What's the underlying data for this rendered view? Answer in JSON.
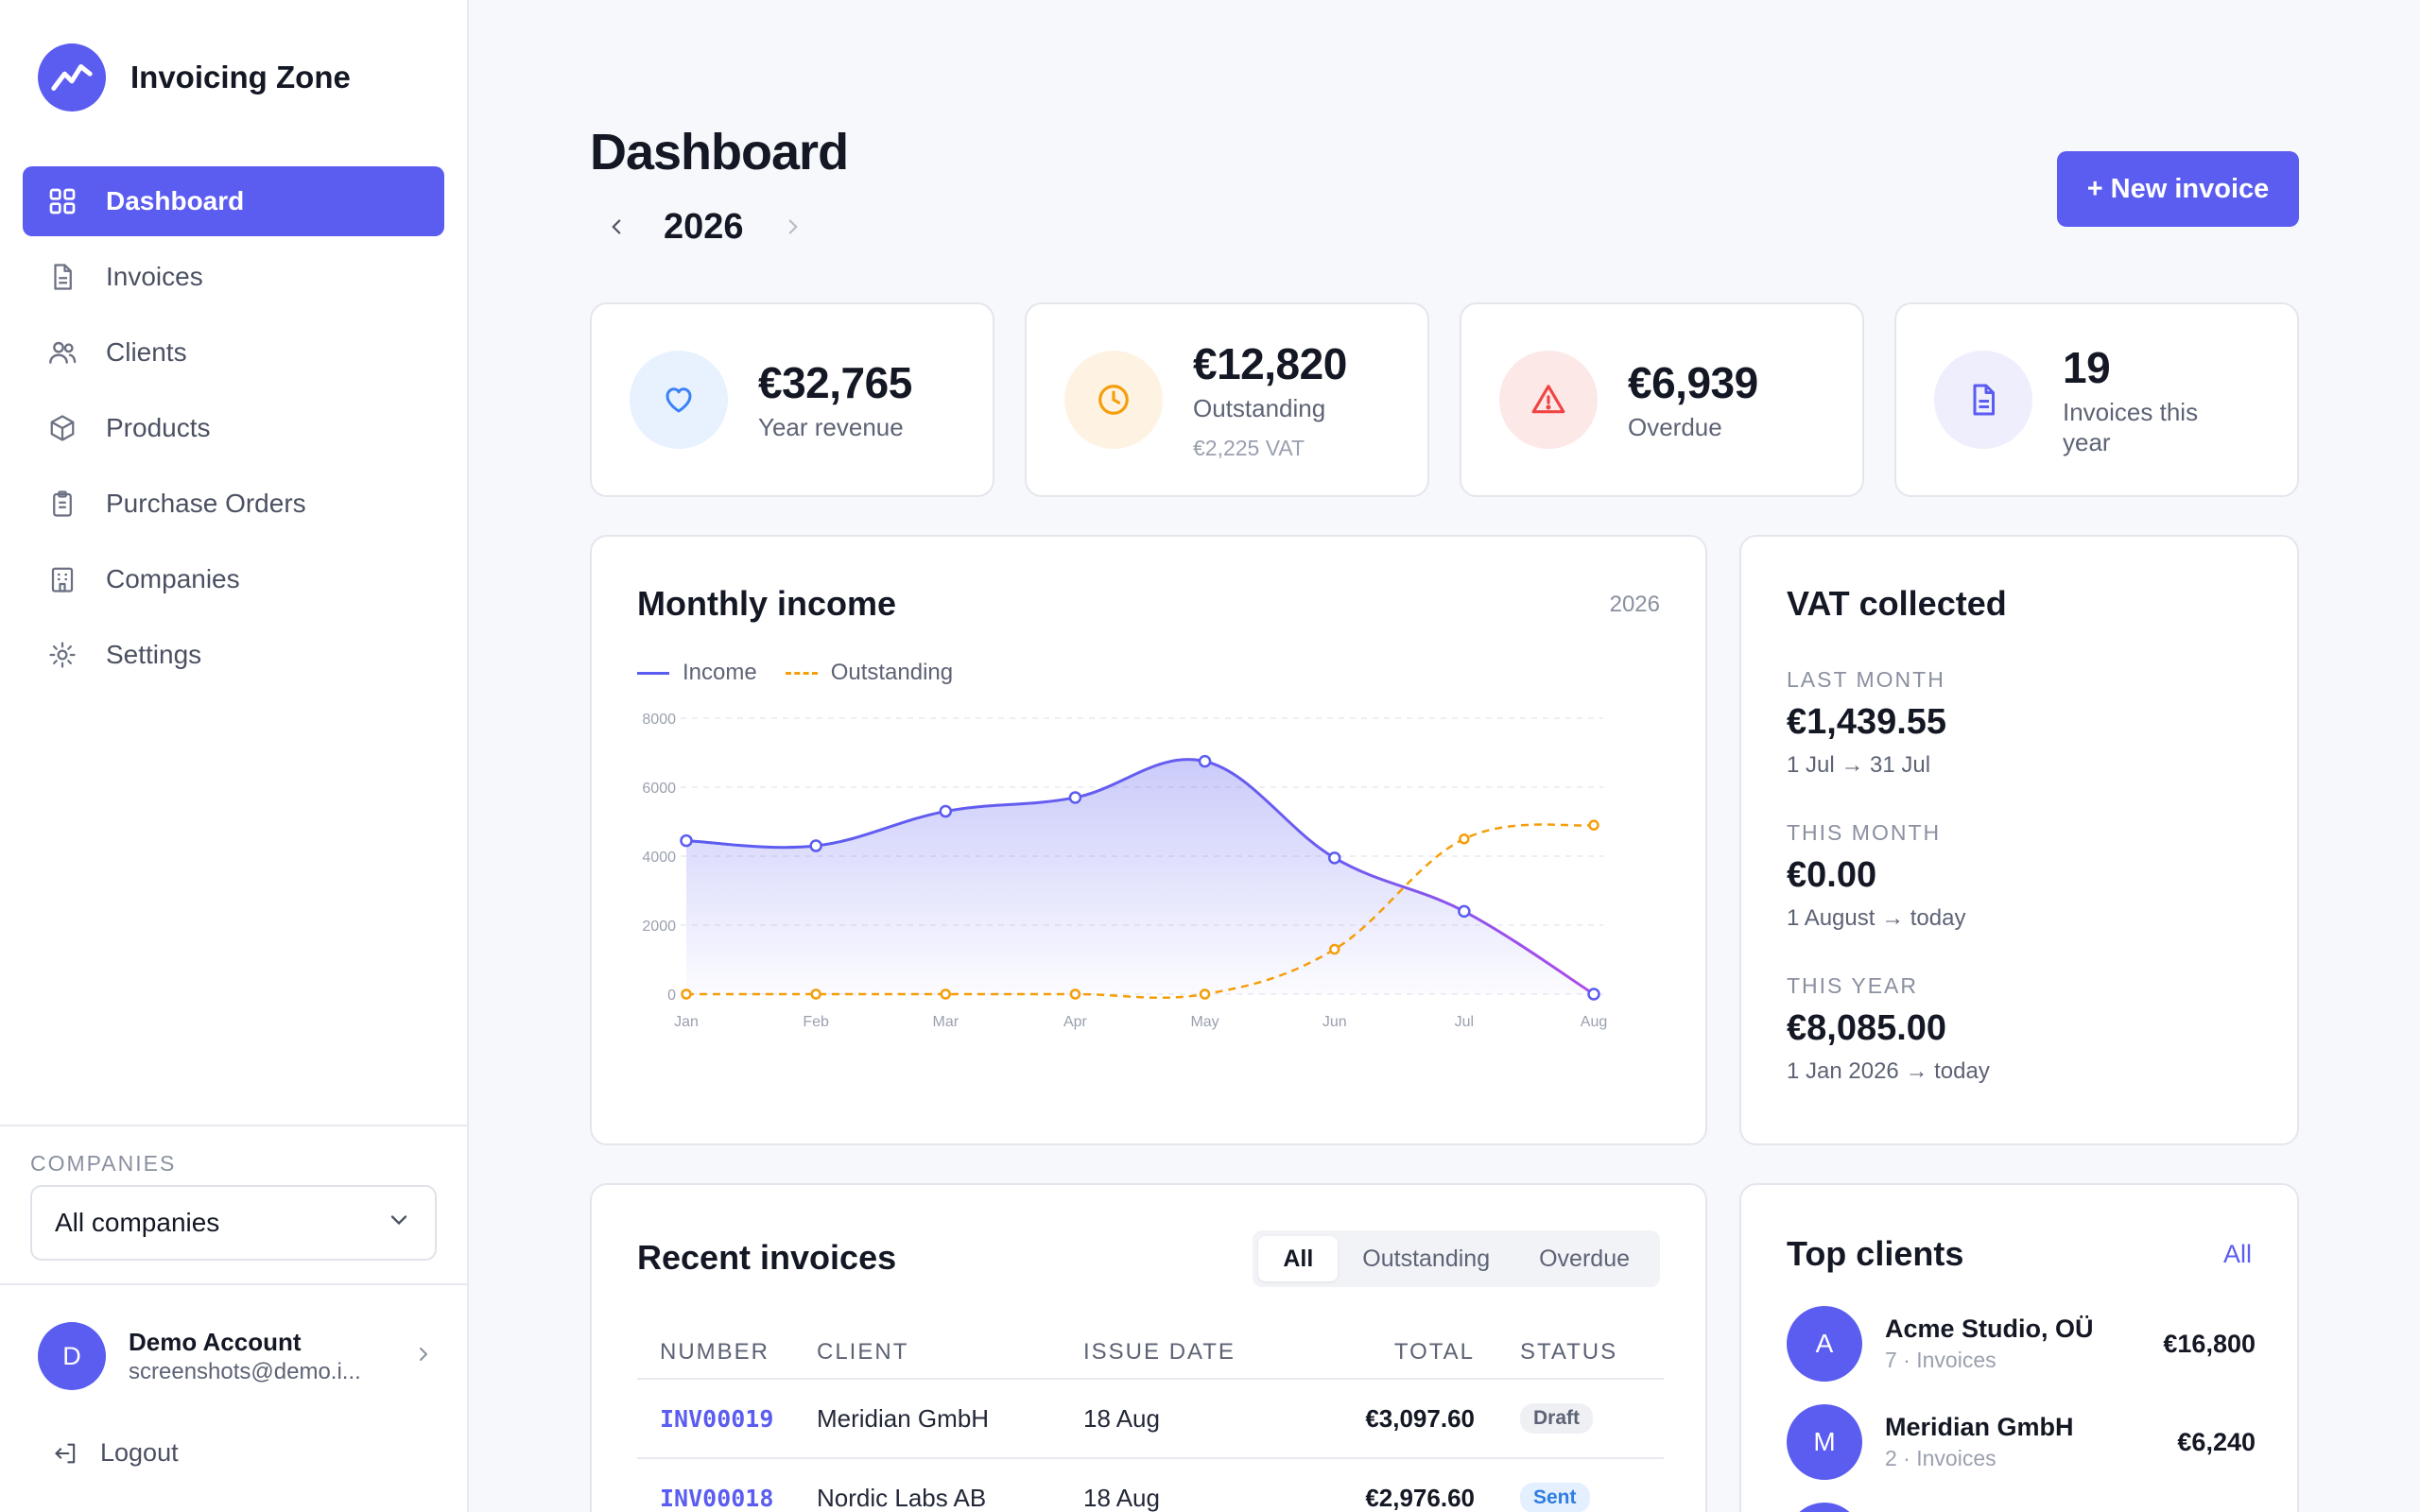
{
  "brand": {
    "name": "Invoicing Zone"
  },
  "nav": [
    {
      "label": "Dashboard",
      "icon": "grid-icon",
      "active": true
    },
    {
      "label": "Invoices",
      "icon": "document-icon"
    },
    {
      "label": "Clients",
      "icon": "users-icon"
    },
    {
      "label": "Products",
      "icon": "box-icon"
    },
    {
      "label": "Purchase Orders",
      "icon": "clipboard-icon"
    },
    {
      "label": "Companies",
      "icon": "building-icon"
    },
    {
      "label": "Settings",
      "icon": "gear-icon"
    }
  ],
  "companies": {
    "label": "COMPANIES",
    "selected": "All companies"
  },
  "account": {
    "initial": "D",
    "name": "Demo Account",
    "email": "screenshots@demo.i..."
  },
  "logout_label": "Logout",
  "header": {
    "title": "Dashboard",
    "year": "2026",
    "new_invoice_label": "+ New invoice"
  },
  "stats": [
    {
      "value": "€32,765",
      "label": "Year revenue",
      "icon": "heart-icon",
      "color": "#3b82f6",
      "bg": "#e8f1fe"
    },
    {
      "value": "€12,820",
      "label": "Outstanding",
      "sub": "€2,225 VAT",
      "icon": "clock-icon",
      "color": "#f59e0b",
      "bg": "#fef3e2"
    },
    {
      "value": "€6,939",
      "label": "Overdue",
      "icon": "warning-icon",
      "color": "#ef4444",
      "bg": "#fde8e8"
    },
    {
      "value": "19",
      "label": "Invoices this year",
      "icon": "document-icon",
      "color": "#5b5cf0",
      "bg": "#eeeefd"
    }
  ],
  "monthly_income": {
    "title": "Monthly income",
    "year": "2026",
    "legend": {
      "income": "Income",
      "outstanding": "Outstanding"
    }
  },
  "chart_data": {
    "type": "line",
    "categories": [
      "Jan",
      "Feb",
      "Mar",
      "Apr",
      "May",
      "Jun",
      "Jul",
      "Aug"
    ],
    "series": [
      {
        "name": "Income",
        "values": [
          4450,
          4300,
          5300,
          5700,
          6750,
          3950,
          2400,
          0
        ],
        "color": "#5b5cf0",
        "area": true
      },
      {
        "name": "Outstanding",
        "values": [
          0,
          0,
          0,
          0,
          0,
          1300,
          4500,
          4900
        ],
        "color": "#f59e0b",
        "dashed": true
      }
    ],
    "yticks": [
      0,
      2000,
      4000,
      6000,
      8000
    ],
    "ylim": [
      0,
      8000
    ],
    "grid": true,
    "legend_position": "top-left"
  },
  "vat": {
    "title": "VAT collected",
    "blocks": [
      {
        "label": "LAST MONTH",
        "value": "€1,439.55",
        "range": "1 Jul → 31 Jul"
      },
      {
        "label": "THIS MONTH",
        "value": "€0.00",
        "range": "1 August → today"
      },
      {
        "label": "THIS YEAR",
        "value": "€8,085.00",
        "range": "1 Jan 2026 → today"
      }
    ]
  },
  "recent": {
    "title": "Recent invoices",
    "filters": [
      "All",
      "Outstanding",
      "Overdue"
    ],
    "columns": [
      "NUMBER",
      "CLIENT",
      "ISSUE DATE",
      "TOTAL",
      "STATUS"
    ],
    "rows": [
      {
        "number": "INV00019",
        "client": "Meridian GmbH",
        "date": "18 Aug",
        "total": "€3,097.60",
        "status": "Draft"
      },
      {
        "number": "INV00018",
        "client": "Nordic Labs AB",
        "date": "18 Aug",
        "total": "€2,976.60",
        "status": "Sent"
      }
    ]
  },
  "top_clients": {
    "title": "Top clients",
    "all_label": "All",
    "items": [
      {
        "initial": "A",
        "name": "Acme Studio, OÜ",
        "meta": "7 · Invoices",
        "total": "€16,800"
      },
      {
        "initial": "M",
        "name": "Meridian GmbH",
        "meta": "2 · Invoices",
        "total": "€6,240"
      }
    ]
  }
}
